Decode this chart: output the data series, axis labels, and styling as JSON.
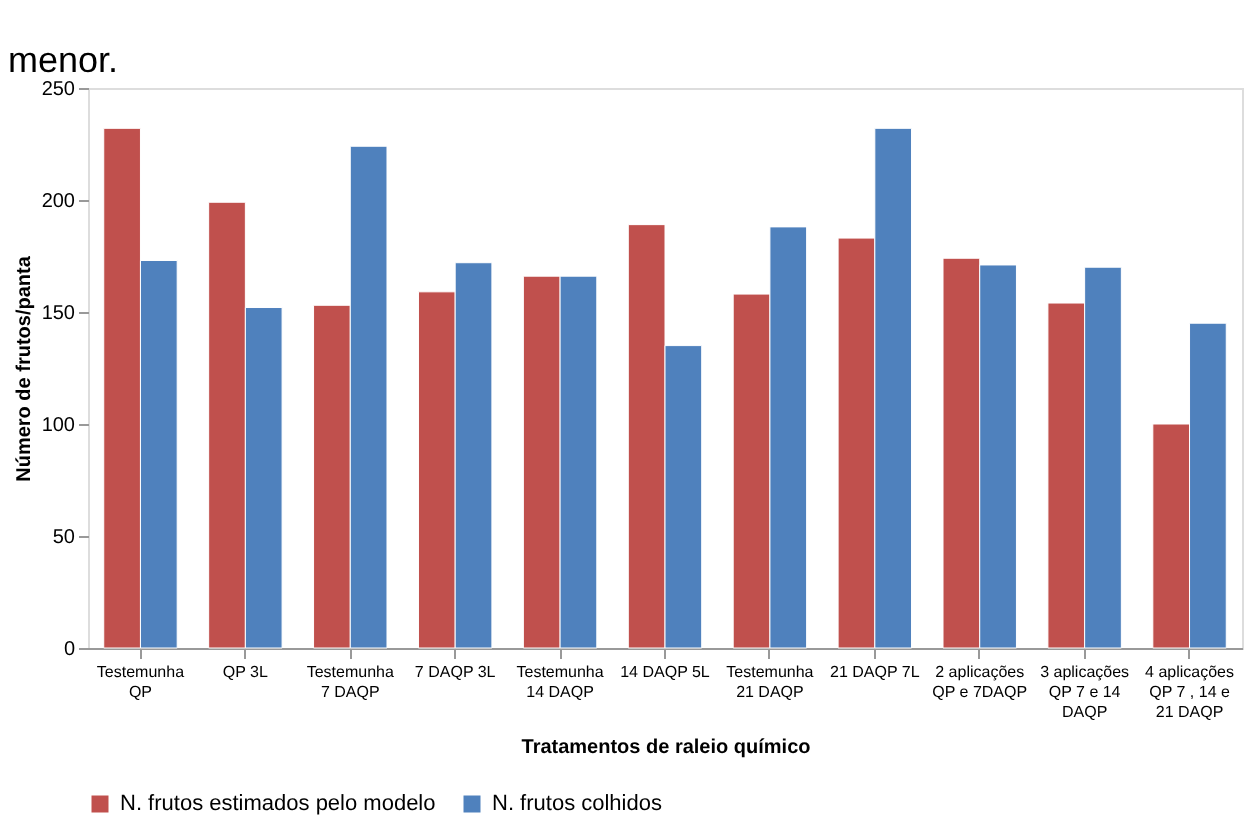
{
  "chart_data": {
    "type": "bar",
    "annotations": [
      "menor."
    ],
    "xlabel": "Tratamentos de raleio químico",
    "ylabel": "Número de frutos/panta",
    "categories": [
      "Testemunha\nQP",
      "QP 3L",
      "Testemunha\n7 DAQP",
      "7 DAQP 3L",
      "Testemunha\n14 DAQP",
      "14 DAQP 5L",
      "Testemunha\n21 DAQP",
      "21 DAQP 7L",
      "2 aplicações\nQP e 7DAQP",
      "3 aplicações\nQP  7 e 14\nDAQP",
      "4 aplicações\nQP  7 , 14 e\n21 DAQP"
    ],
    "series": [
      {
        "name": "N. frutos estimados pelo modelo",
        "color": "#c0504d",
        "values": [
          232,
          199,
          153,
          159,
          166,
          189,
          158,
          183,
          174,
          154,
          100
        ]
      },
      {
        "name": "N. frutos colhidos",
        "color": "#4f81bd",
        "values": [
          173,
          152,
          224,
          172,
          166,
          135,
          188,
          232,
          171,
          170,
          145
        ]
      }
    ],
    "ylim": [
      0,
      250
    ],
    "yticks": [
      0,
      50,
      100,
      150,
      200,
      250
    ],
    "grid": false,
    "legend": "bottom"
  }
}
